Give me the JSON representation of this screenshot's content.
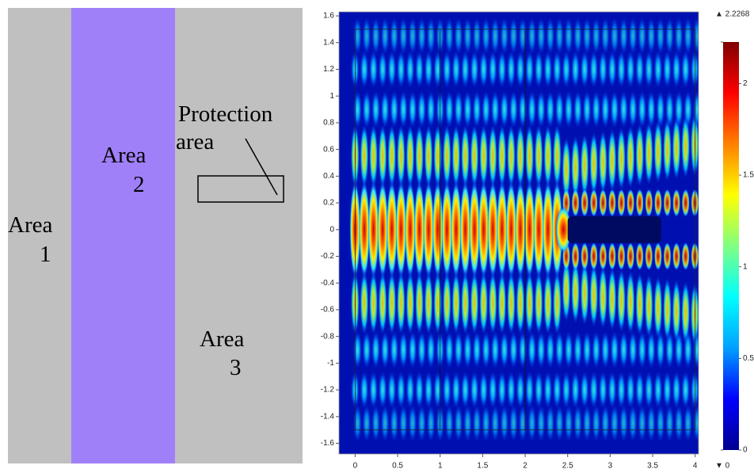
{
  "diagram": {
    "area1": [
      "Area",
      "1"
    ],
    "area2": [
      "Area",
      "2"
    ],
    "area3": [
      "Area",
      "3"
    ],
    "protection": [
      "Protection",
      "area"
    ]
  },
  "plot": {
    "type": "heatmap",
    "xlim": [
      -0.19,
      4.04
    ],
    "ylim": [
      -1.68,
      1.63
    ],
    "xticks": [
      0,
      0.5,
      1,
      1.5,
      2,
      2.5,
      3,
      3.5,
      4
    ],
    "yticks": [
      1.6,
      1.4,
      1.2,
      1,
      0.8,
      0.6,
      0.4,
      0.2,
      0,
      -0.2,
      -0.4,
      -0.6,
      -0.8,
      -1,
      -1.2,
      -1.4,
      -1.6
    ],
    "colorbar": {
      "ticks": [
        0,
        0.5,
        1,
        1.5,
        2
      ],
      "max": {
        "value": 2.2268,
        "label": "▲ 2.2268"
      },
      "min": {
        "value": 0,
        "label": "▼ 0"
      },
      "colors": [
        "#00008f",
        "#0000ff",
        "#00a0ff",
        "#00ffff",
        "#80ff80",
        "#ffff00",
        "#ff8000",
        "#ff0000",
        "#800000"
      ]
    }
  }
}
